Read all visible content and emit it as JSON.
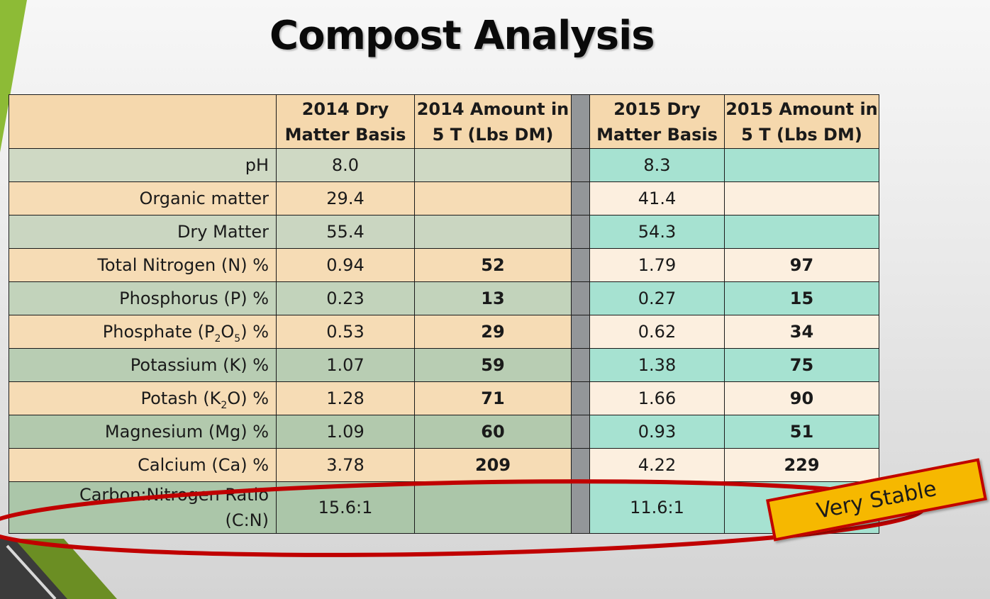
{
  "title": "Compost Analysis",
  "columns": [
    "",
    "2014 Dry Matter Basis",
    "2014 Amount in 5 T (Lbs DM)",
    "2015 Dry Matter Basis",
    "2015 Amount in  5 T  (Lbs DM)"
  ],
  "header": {
    "c1_line1": "2014 Dry",
    "c1_line2": "Matter Basis",
    "c2_line1": "2014 Amount in",
    "c2_line2": "5 T (Lbs DM)",
    "c3_line1": "2015 Dry",
    "c3_line2": "Matter Basis",
    "c4_line1": "2015 Amount in",
    "c4_line2": "5 T  (Lbs DM)"
  },
  "rows": [
    {
      "label": "pH",
      "dm2014": "8.0",
      "amt2014": "",
      "dm2015": "8.3",
      "amt2015": ""
    },
    {
      "label": "Organic matter",
      "dm2014": "29.4",
      "amt2014": "",
      "dm2015": "41.4",
      "amt2015": ""
    },
    {
      "label": "Dry Matter",
      "dm2014": "55.4",
      "amt2014": "",
      "dm2015": "54.3",
      "amt2015": ""
    },
    {
      "label": "Total Nitrogen (N) %",
      "dm2014": "0.94",
      "amt2014": "52",
      "dm2015": "1.79",
      "amt2015": "97"
    },
    {
      "label": "Phosphorus (P) %",
      "dm2014": "0.23",
      "amt2014": "13",
      "dm2015": "0.27",
      "amt2015": "15"
    },
    {
      "label_a": "Phosphate (P",
      "label_s1": "2",
      "label_b": "O",
      "label_s2": "5",
      "label_c": ") %",
      "dm2014": "0.53",
      "amt2014": "29",
      "dm2015": "0.62",
      "amt2015": "34"
    },
    {
      "label": "Potassium (K) %",
      "dm2014": "1.07",
      "amt2014": "59",
      "dm2015": "1.38",
      "amt2015": "75"
    },
    {
      "label_a": "Potash (K",
      "label_s1": "2",
      "label_b": "O) %",
      "dm2014": "1.28",
      "amt2014": "71",
      "dm2015": "1.66",
      "amt2015": "90"
    },
    {
      "label": "Magnesium (Mg) %",
      "dm2014": "1.09",
      "amt2014": "60",
      "dm2015": "0.93",
      "amt2015": "51"
    },
    {
      "label": "Calcium (Ca) %",
      "dm2014": "3.78",
      "amt2014": "209",
      "dm2015": "4.22",
      "amt2015": "229"
    },
    {
      "label_line1": "Carbon:Nitrogen Ratio",
      "label_line2": "(C:N)",
      "dm2014": "15.6:1",
      "amt2014": "",
      "dm2015": "11.6:1",
      "amt2015": ""
    }
  ],
  "callout": "Very Stable",
  "colors": {
    "header": "#f5d8ad",
    "row_green_a": "#cfd9c4",
    "row_green_b": "#a9c5a9",
    "row_peach": "#f6dcb5",
    "teal": "#a6e2d1",
    "cream": "#fcefdf",
    "gap": "#939699",
    "ellipse": "#c00000",
    "badge": "#f6b800"
  }
}
